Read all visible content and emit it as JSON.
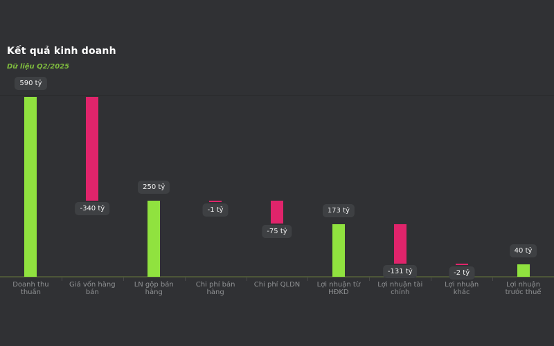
{
  "header": {
    "title": "Kết quả kinh doanh",
    "subtitle": "Dữ liệu Q2/2025"
  },
  "colors": {
    "background": "#303134",
    "positive": "#90e23f",
    "negative": "#e0246b",
    "badge_background": "#3e4043",
    "badge_text": "#f2f2f2",
    "axis_line": "#4c5638",
    "tick": "#4a4a4a",
    "axis_label": "#8f9193",
    "title_text": "#ffffff",
    "subtitle_text": "#7eba3e",
    "gridline": "#27282a"
  },
  "chart_data": {
    "type": "bar",
    "variant": "waterfall",
    "title": "Kết quả kinh doanh",
    "subtitle": "Dữ liệu Q2/2025",
    "unit": "tỷ",
    "ylim": [
      0,
      590
    ],
    "grid": false,
    "legend": "none",
    "categories": [
      "Doanh thu thuần",
      "Giá vốn hàng bán",
      "LN gộp bán hàng",
      "Chi phí bán hàng",
      "Chi phí QLDN",
      "Lợi nhuận từ HĐKD",
      "Lợi nhuận tài chính",
      "Lợi nhuận khác",
      "Lợi nhuận trước thuế"
    ],
    "bars": [
      {
        "category": "Doanh thu thuần",
        "label_lines": "Doanh thu\nthuần",
        "value": 590,
        "display_value": "590 tỷ",
        "start": 0,
        "end": 590,
        "role": "total",
        "color": "positive",
        "badge_position": "above"
      },
      {
        "category": "Giá vốn hàng bán",
        "label_lines": "Giá vốn hàng\nbán",
        "value": -340,
        "display_value": "-340 tỷ",
        "start": 590,
        "end": 250,
        "role": "decrease",
        "color": "negative",
        "badge_position": "below"
      },
      {
        "category": "LN gộp bán hàng",
        "label_lines": "LN gộp bán\nhàng",
        "value": 250,
        "display_value": "250 tỷ",
        "start": 0,
        "end": 250,
        "role": "subtotal",
        "color": "positive",
        "badge_position": "above"
      },
      {
        "category": "Chi phí bán hàng",
        "label_lines": "Chi phí bán\nhàng",
        "value": -1,
        "display_value": "-1 tỷ",
        "start": 250,
        "end": 249,
        "role": "decrease",
        "color": "negative",
        "badge_position": "below"
      },
      {
        "category": "Chi phí QLDN",
        "label_lines": "Chi phí QLDN",
        "value": -75,
        "display_value": "-75 tỷ",
        "start": 249,
        "end": 174,
        "role": "decrease",
        "color": "negative",
        "badge_position": "below"
      },
      {
        "category": "Lợi nhuận từ HĐKD",
        "label_lines": "Lợi nhuận từ\nHĐKD",
        "value": 173,
        "display_value": "173 tỷ",
        "start": 0,
        "end": 173,
        "role": "subtotal",
        "color": "positive",
        "badge_position": "above"
      },
      {
        "category": "Lợi nhuận tài chính",
        "label_lines": "Lợi nhuận tài\nchính",
        "value": -131,
        "display_value": "-131 tỷ",
        "start": 173,
        "end": 42,
        "role": "decrease",
        "color": "negative",
        "badge_position": "below"
      },
      {
        "category": "Lợi nhuận khác",
        "label_lines": "Lợi nhuận\nkhác",
        "value": -2,
        "display_value": "-2 tỷ",
        "start": 42,
        "end": 40,
        "role": "decrease",
        "color": "negative",
        "badge_position": "below"
      },
      {
        "category": "Lợi nhuận trước thuế",
        "label_lines": "Lợi nhuận\ntrước thuế",
        "value": 40,
        "display_value": "40 tỷ",
        "start": 0,
        "end": 40,
        "role": "subtotal",
        "color": "positive",
        "badge_position": "above"
      }
    ]
  }
}
